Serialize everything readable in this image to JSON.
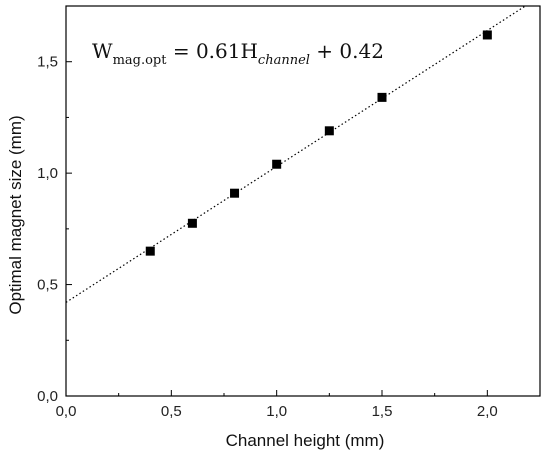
{
  "chart_data": {
    "type": "scatter",
    "xlabel": "Channel height (mm)",
    "ylabel": "Optimal magnet size (mm)",
    "xlim": [
      0,
      2.25
    ],
    "ylim": [
      0,
      1.75
    ],
    "x_ticks": [
      "0,0",
      "0,5",
      "1,0",
      "1,5",
      "2,0"
    ],
    "y_ticks": [
      "0,0",
      "0,5",
      "1,0",
      "1,5"
    ],
    "x_tick_values": [
      0,
      0.5,
      1.0,
      1.5,
      2.0
    ],
    "y_tick_values": [
      0,
      0.5,
      1.0,
      1.5
    ],
    "series": [
      {
        "marker": "square",
        "color": "#000000",
        "points": [
          {
            "x": 0.4,
            "y": 0.65
          },
          {
            "x": 0.6,
            "y": 0.775
          },
          {
            "x": 0.8,
            "y": 0.91
          },
          {
            "x": 1.0,
            "y": 1.04
          },
          {
            "x": 1.25,
            "y": 1.19
          },
          {
            "x": 1.5,
            "y": 1.34
          },
          {
            "x": 2.0,
            "y": 1.62
          }
        ]
      }
    ],
    "fit": {
      "slope": 0.61,
      "intercept": 0.42,
      "style": "dotted",
      "color": "#000000"
    },
    "annotation": {
      "lhs_main": "W",
      "lhs_sub": "mag.opt",
      "eq": " = 0.61H",
      "channel_sub": "channel",
      "rest": " + 0.42"
    },
    "grid": false,
    "legend": "none"
  }
}
